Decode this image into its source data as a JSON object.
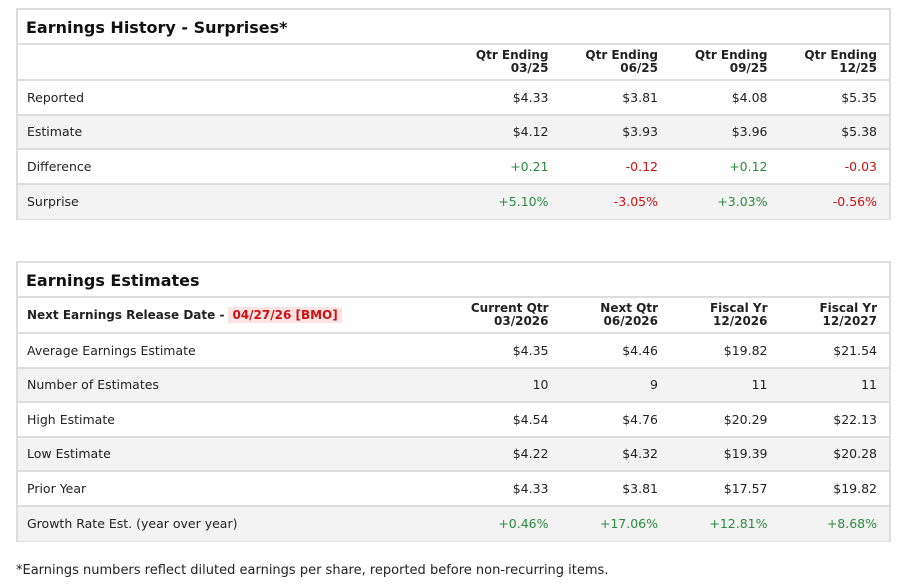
{
  "history": {
    "title": "Earnings History - Surprises*",
    "headers": [
      [
        "Qtr Ending",
        "03/25"
      ],
      [
        "Qtr Ending",
        "06/25"
      ],
      [
        "Qtr Ending",
        "09/25"
      ],
      [
        "Qtr Ending",
        "12/25"
      ]
    ],
    "rows": [
      {
        "label": "Reported",
        "values": [
          "$4.33",
          "$3.81",
          "$4.08",
          "$5.35"
        ]
      },
      {
        "label": "Estimate",
        "values": [
          "$4.12",
          "$3.93",
          "$3.96",
          "$5.38"
        ]
      },
      {
        "label": "Difference",
        "values": [
          "+0.21",
          "-0.12",
          "+0.12",
          "-0.03"
        ]
      },
      {
        "label": "Surprise",
        "values": [
          "+5.10%",
          "-3.05%",
          "+3.03%",
          "-0.56%"
        ]
      }
    ]
  },
  "estimates": {
    "title": "Earnings Estimates",
    "release_label": "Next Earnings Release Date -",
    "release_date": "04/27/26 [BMO]",
    "headers": [
      [
        "Current Qtr",
        "03/2026"
      ],
      [
        "Next Qtr",
        "06/2026"
      ],
      [
        "Fiscal Yr",
        "12/2026"
      ],
      [
        "Fiscal Yr",
        "12/2027"
      ]
    ],
    "rows": [
      {
        "label": "Average Earnings Estimate",
        "values": [
          "$4.35",
          "$4.46",
          "$19.82",
          "$21.54"
        ]
      },
      {
        "label": "Number of Estimates",
        "values": [
          "10",
          "9",
          "11",
          "11"
        ]
      },
      {
        "label": "High Estimate",
        "values": [
          "$4.54",
          "$4.76",
          "$20.29",
          "$22.13"
        ]
      },
      {
        "label": "Low Estimate",
        "values": [
          "$4.22",
          "$4.32",
          "$19.39",
          "$20.28"
        ]
      },
      {
        "label": "Prior Year",
        "values": [
          "$4.33",
          "$3.81",
          "$17.57",
          "$19.82"
        ]
      },
      {
        "label": "Growth Rate Est. (year over year)",
        "values": [
          "+0.46%",
          "+17.06%",
          "+12.81%",
          "+8.68%"
        ]
      }
    ]
  },
  "footnote": "*Earnings numbers reflect diluted earnings per share, reported before non-recurring items.",
  "colors": {
    "positive": "#2b8a3e",
    "negative": "#cc1111"
  }
}
